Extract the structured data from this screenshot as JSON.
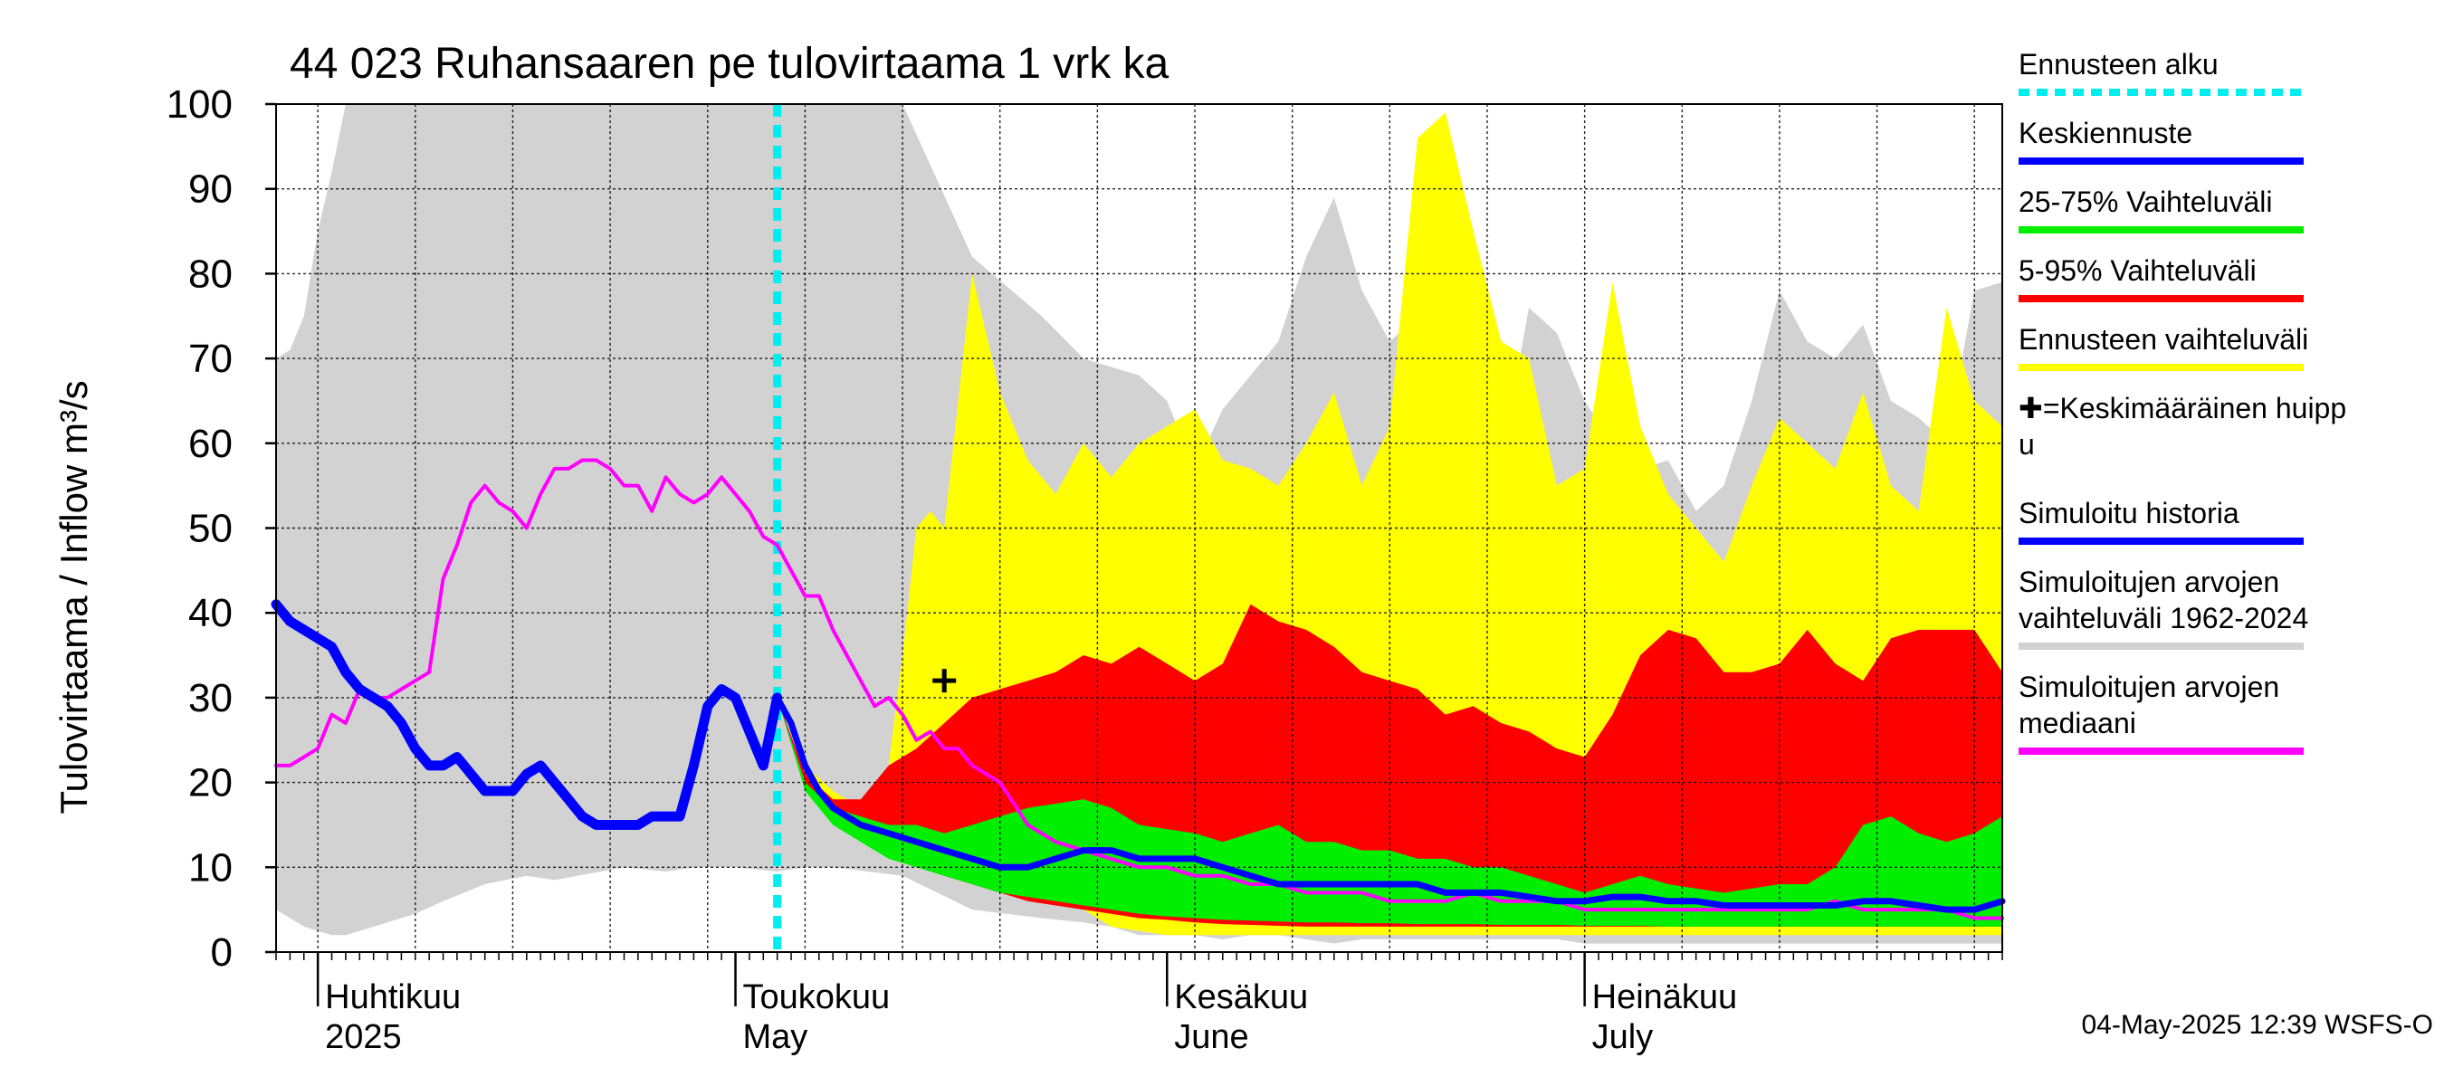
{
  "chart_data": {
    "type": "area",
    "title": "44 023 Ruhansaaren pe tulovirtaama 1 vrk ka",
    "ylabel": "Tulovirtaama / Inflow   m³/s",
    "ylim": [
      0,
      100
    ],
    "yticks": [
      0,
      10,
      20,
      30,
      40,
      50,
      60,
      70,
      80,
      90,
      100
    ],
    "x_start": "2025-03-29",
    "x_end": "2025-07-31",
    "forecast_start": "2025-05-04",
    "months": [
      {
        "line1": "Huhtikuu",
        "line2": "2025",
        "date": "2025-04-01"
      },
      {
        "line1": "Toukokuu",
        "line2": "May",
        "date": "2025-05-01"
      },
      {
        "line1": "Kesäkuu",
        "line2": "June",
        "date": "2025-06-01"
      },
      {
        "line1": "Heinäkuu",
        "line2": "July",
        "date": "2025-07-01"
      }
    ],
    "mean_peak": {
      "day": 48,
      "value": 32,
      "marker": "+"
    },
    "series": [
      {
        "name": "Simuloitujen arvojen vaihteluväli 1962-2024",
        "kind": "band",
        "color": "#d2d2d2",
        "days": [
          0,
          1,
          2,
          3,
          4,
          5,
          6,
          7,
          8,
          10,
          12,
          15,
          18,
          20,
          25,
          28,
          30,
          33,
          36,
          38,
          40,
          45,
          50,
          55,
          58,
          60,
          62,
          64,
          66,
          68,
          70,
          72,
          74,
          76,
          78,
          80,
          82,
          84,
          86,
          88,
          90,
          92,
          94,
          96,
          98,
          100,
          102,
          104,
          106,
          108,
          110,
          112,
          114,
          116,
          118,
          120,
          122,
          124
        ],
        "low": [
          5,
          4,
          3,
          2.5,
          2,
          2,
          2.5,
          3,
          3.5,
          4.5,
          6,
          8,
          9,
          8.5,
          10,
          9.5,
          10,
          10,
          9.5,
          10,
          10,
          9,
          5,
          4,
          3.5,
          3,
          2,
          2,
          2,
          1.5,
          2,
          2,
          1.5,
          1,
          1.5,
          1.5,
          1.5,
          1.5,
          1.5,
          1.5,
          1.5,
          1.5,
          1,
          1,
          1,
          1,
          1,
          1,
          1,
          1,
          1,
          1,
          1,
          1,
          1,
          1,
          1,
          1
        ],
        "high": [
          70,
          71,
          75,
          85,
          92,
          100,
          100,
          100,
          100,
          100,
          100,
          100,
          100,
          100,
          100,
          100,
          100,
          100,
          100,
          100,
          100,
          100,
          82,
          75,
          70,
          69,
          68,
          65,
          57,
          64,
          68,
          72,
          82,
          89,
          78,
          72,
          75,
          72,
          63,
          58,
          76,
          73,
          65,
          60,
          57,
          58,
          52,
          55,
          65,
          78,
          72,
          70,
          74,
          65,
          63,
          60,
          78,
          79
        ]
      },
      {
        "name": "Ennusteen vaihteluväli",
        "kind": "band",
        "color": "#ffff00",
        "days": [
          36,
          38,
          40,
          42,
          44,
          45,
          46,
          47,
          48,
          49,
          50,
          52,
          54,
          56,
          58,
          60,
          62,
          64,
          66,
          68,
          70,
          72,
          74,
          76,
          78,
          80,
          82,
          84,
          86,
          88,
          90,
          92,
          94,
          96,
          98,
          100,
          102,
          104,
          106,
          108,
          110,
          112,
          114,
          116,
          118,
          120,
          122,
          124
        ],
        "low": [
          30,
          22,
          17,
          14,
          13,
          12,
          11,
          11,
          10,
          9.5,
          9,
          8,
          7,
          6,
          5,
          3,
          2.5,
          2,
          2,
          2,
          2,
          2,
          2,
          2,
          2,
          2,
          2,
          2,
          2,
          2,
          2,
          2,
          2,
          2,
          2,
          2,
          2,
          2,
          2,
          2,
          2,
          2,
          2,
          2,
          2,
          2,
          2,
          2
        ],
        "high": [
          30,
          22,
          19,
          17,
          22,
          35,
          50,
          52,
          50,
          65,
          80,
          66,
          58,
          54,
          60,
          56,
          60,
          62,
          64,
          58,
          57,
          55,
          60,
          66,
          55,
          62,
          96,
          99,
          85,
          72,
          70,
          55,
          57,
          79,
          62,
          54,
          50,
          46,
          55,
          63,
          60,
          57,
          66,
          55,
          52,
          76,
          65,
          62
        ]
      },
      {
        "name": "5-95% Vaihteluväli",
        "kind": "band",
        "color": "#ff0000",
        "days": [
          36,
          38,
          40,
          42,
          44,
          46,
          48,
          50,
          52,
          54,
          56,
          58,
          60,
          62,
          64,
          66,
          68,
          70,
          72,
          74,
          76,
          78,
          80,
          82,
          84,
          86,
          88,
          90,
          92,
          94,
          96,
          98,
          100,
          102,
          104,
          106,
          108,
          110,
          112,
          114,
          116,
          118,
          120,
          122,
          124
        ],
        "low": [
          30,
          20,
          16,
          14,
          12,
          10.5,
          9,
          8,
          7,
          6,
          5.5,
          5,
          4.5,
          4,
          3.8,
          3.5,
          3.3,
          3.2,
          3.1,
          3,
          3,
          3,
          3,
          3,
          3,
          3,
          3,
          3,
          3,
          3,
          3,
          3,
          3,
          3,
          3,
          3,
          3,
          3,
          3,
          3,
          3,
          3,
          3,
          3,
          3
        ],
        "high": [
          30,
          21,
          18,
          18,
          22,
          24,
          27,
          30,
          31,
          32,
          33,
          35,
          34,
          36,
          34,
          32,
          34,
          41,
          39,
          38,
          36,
          33,
          32,
          31,
          28,
          29,
          27,
          26,
          24,
          23,
          28,
          35,
          38,
          37,
          33,
          33,
          34,
          38,
          34,
          32,
          37,
          38,
          38,
          38,
          33
        ]
      },
      {
        "name": "25-75% Vaihteluväli",
        "kind": "band",
        "color": "#00ee00",
        "days": [
          36,
          38,
          40,
          42,
          44,
          46,
          48,
          50,
          52,
          54,
          56,
          58,
          60,
          62,
          64,
          66,
          68,
          70,
          72,
          74,
          76,
          78,
          80,
          82,
          84,
          86,
          88,
          90,
          92,
          94,
          96,
          98,
          100,
          102,
          104,
          106,
          108,
          110,
          112,
          114,
          116,
          118,
          120,
          122,
          124
        ],
        "low": [
          30,
          19,
          15,
          13,
          11,
          10,
          9,
          8,
          7,
          6.5,
          6,
          5.5,
          5,
          4.5,
          4.2,
          4,
          3.8,
          3.7,
          3.6,
          3.5,
          3.5,
          3.4,
          3.4,
          3.3,
          3.3,
          3.3,
          3.2,
          3.2,
          3.2,
          3.1,
          3.1,
          3.1,
          3,
          3,
          3,
          3,
          3,
          3,
          3,
          3,
          3,
          3,
          3,
          3,
          3
        ],
        "high": [
          30,
          20,
          17,
          16,
          15,
          15,
          14,
          15,
          16,
          17,
          17.5,
          18,
          17,
          15,
          14.5,
          14,
          13,
          14,
          15,
          13,
          13,
          12,
          12,
          11,
          11,
          10,
          10,
          9,
          8,
          7,
          8,
          9,
          8,
          7.5,
          7,
          7.5,
          8,
          8,
          10,
          15,
          16,
          14,
          13,
          14,
          16
        ]
      },
      {
        "name": "Simuloitujen arvojen mediaani",
        "kind": "line",
        "color": "#ff00ff",
        "days": [
          0,
          1,
          2,
          3,
          4,
          5,
          6,
          7,
          8,
          9,
          10,
          11,
          12,
          13,
          14,
          15,
          16,
          17,
          18,
          19,
          20,
          21,
          22,
          23,
          24,
          25,
          26,
          27,
          28,
          29,
          30,
          31,
          32,
          33,
          34,
          35,
          36,
          37,
          38,
          39,
          40,
          41,
          42,
          43,
          44,
          45,
          46,
          47,
          48,
          49,
          50,
          52,
          54,
          56,
          58,
          60,
          62,
          64,
          66,
          68,
          70,
          72,
          74,
          76,
          78,
          80,
          82,
          84,
          86,
          88,
          90,
          92,
          94,
          96,
          98,
          100,
          102,
          104,
          106,
          108,
          110,
          112,
          114,
          116,
          118,
          120,
          122,
          124
        ],
        "values": [
          22,
          22,
          23,
          24,
          28,
          27,
          31,
          30,
          30,
          31,
          32,
          33,
          44,
          48,
          53,
          55,
          53,
          52,
          50,
          54,
          57,
          57,
          58,
          58,
          57,
          55,
          55,
          52,
          56,
          54,
          53,
          54,
          56,
          54,
          52,
          49,
          48,
          45,
          42,
          42,
          38,
          35,
          32,
          29,
          30,
          28,
          25,
          26,
          24,
          24,
          22,
          20,
          15,
          13,
          12,
          11,
          10,
          10,
          9,
          9,
          8,
          8,
          7,
          7,
          7,
          6,
          6,
          6,
          7,
          6,
          6,
          6,
          5,
          5,
          5,
          5,
          5,
          5,
          5,
          5,
          5,
          6,
          5,
          5,
          5,
          5,
          4,
          4
        ]
      },
      {
        "name": "Keskiennuste",
        "kind": "line",
        "color": "#0000ff",
        "days": [
          36,
          37,
          38,
          39,
          40,
          42,
          44,
          46,
          48,
          50,
          52,
          54,
          56,
          58,
          60,
          62,
          64,
          66,
          68,
          70,
          72,
          74,
          76,
          78,
          80,
          82,
          84,
          86,
          88,
          90,
          92,
          94,
          96,
          98,
          100,
          102,
          104,
          106,
          108,
          110,
          112,
          114,
          116,
          118,
          120,
          122,
          124
        ],
        "values": [
          30,
          27,
          22,
          19,
          17,
          15,
          14,
          13,
          12,
          11,
          10,
          10,
          11,
          12,
          12,
          11,
          11,
          11,
          10,
          9,
          8,
          8,
          8,
          8,
          8,
          8,
          7,
          7,
          7,
          6.5,
          6,
          6,
          6.5,
          6.5,
          6,
          6,
          5.5,
          5.5,
          5.5,
          5.5,
          5.5,
          6,
          6,
          5.5,
          5,
          5,
          6
        ]
      },
      {
        "name": "Simuloitu historia",
        "kind": "line",
        "color": "#0000ff",
        "days": [
          0,
          1,
          2,
          3,
          4,
          5,
          6,
          7,
          8,
          9,
          10,
          11,
          12,
          13,
          14,
          15,
          16,
          17,
          18,
          19,
          20,
          21,
          22,
          23,
          24,
          25,
          26,
          27,
          28,
          29,
          30,
          31,
          32,
          33,
          34,
          35,
          36
        ],
        "values": [
          41,
          39,
          38,
          37,
          36,
          33,
          31,
          30,
          29,
          27,
          24,
          22,
          22,
          23,
          21,
          19,
          19,
          19,
          21,
          22,
          20,
          18,
          16,
          15,
          15,
          15,
          15,
          16,
          16,
          16,
          22,
          29,
          31,
          30,
          26,
          22,
          30
        ]
      }
    ],
    "legend": [
      {
        "label": "Ennusteen alku",
        "color": "#00eeee",
        "style": "dotted"
      },
      {
        "label": "Keskiennuste",
        "color": "#0000ff",
        "style": "solid"
      },
      {
        "label": "25-75% Vaihteluväli",
        "color": "#00ee00",
        "style": "solid"
      },
      {
        "label": "5-95% Vaihteluväli",
        "color": "#ff0000",
        "style": "solid"
      },
      {
        "label": "Ennusteen vaihteluväli",
        "color": "#ffff00",
        "style": "solid"
      },
      {
        "label": "✚=Keskimääräinen huippu",
        "color": "",
        "style": "none"
      },
      {
        "label": "Simuloitu historia",
        "color": "#0000ff",
        "style": "solid"
      },
      {
        "label": "Simuloitujen arvojen vaihteluväli 1962-2024",
        "color": "#d2d2d2",
        "style": "solid"
      },
      {
        "label": "Simuloitujen arvojen mediaani",
        "color": "#ff00ff",
        "style": "solid"
      }
    ],
    "legend_lines": [
      [
        "Ennusteen alku"
      ],
      [
        "Keskiennuste"
      ],
      [
        "25-75% Vaihteluväli"
      ],
      [
        "5-95% Vaihteluväli"
      ],
      [
        "Ennusteen vaihteluväli"
      ],
      [
        "✚=Keskimääräinen huipp",
        "u"
      ],
      [
        "Simuloitu historia"
      ],
      [
        "Simuloitujen arvojen",
        "vaihteluväli 1962-2024"
      ],
      [
        "Simuloitujen arvojen",
        "mediaani"
      ]
    ],
    "footer": "04-May-2025 12:39 WSFS-O"
  }
}
